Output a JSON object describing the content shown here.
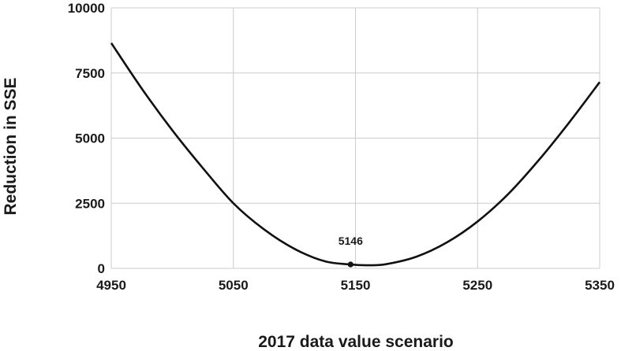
{
  "chart_data": {
    "type": "line",
    "xlabel": "2017 data value scenario",
    "ylabel": "Reduction in SSE",
    "xlim": [
      4950,
      5350
    ],
    "ylim": [
      0,
      10000
    ],
    "x_ticks": [
      4950,
      5050,
      5150,
      5250,
      5350
    ],
    "y_ticks": [
      0,
      2500,
      5000,
      7500,
      10000
    ],
    "x_tick_labels": [
      "4950",
      "5050",
      "5150",
      "5250",
      "5350"
    ],
    "y_tick_labels": [
      "0",
      "2500",
      "5000",
      "7500",
      "10000"
    ],
    "grid": true,
    "line_color": "#111111",
    "series": [
      {
        "x": [
          4950,
          4975,
          5000,
          5025,
          5050,
          5075,
          5100,
          5125,
          5146,
          5160,
          5175,
          5200,
          5225,
          5250,
          5275,
          5300,
          5325,
          5350
        ],
        "values": [
          8650,
          6900,
          5300,
          3850,
          2500,
          1500,
          750,
          270,
          150,
          120,
          160,
          450,
          1000,
          1800,
          2850,
          4150,
          5600,
          7150
        ]
      }
    ],
    "annotation": {
      "label": "5146",
      "x": 5146,
      "y": 150
    }
  }
}
